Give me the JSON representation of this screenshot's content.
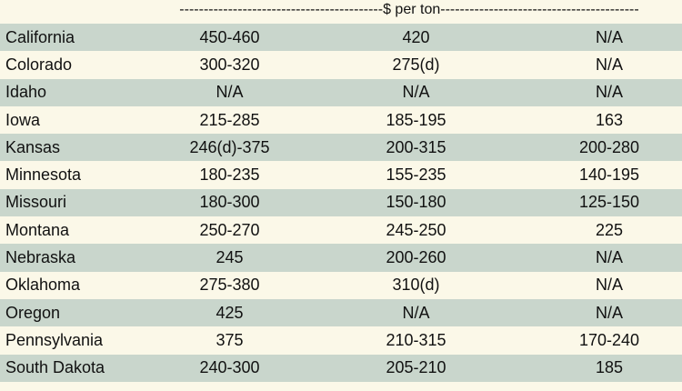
{
  "header": {
    "unit_label": "------------------------------------------$ per ton-----------------------------------------"
  },
  "rows": [
    {
      "state": "California",
      "v1": "450-460",
      "v2": "420",
      "v3": "N/A"
    },
    {
      "state": "Colorado",
      "v1": "300-320",
      "v2": "275(d)",
      "v3": "N/A"
    },
    {
      "state": "Idaho",
      "v1": "N/A",
      "v2": "N/A",
      "v3": "N/A"
    },
    {
      "state": "Iowa",
      "v1": "215-285",
      "v2": "185-195",
      "v3": "163"
    },
    {
      "state": "Kansas",
      "v1": "246(d)-375",
      "v2": "200-315",
      "v3": "200-280"
    },
    {
      "state": "Minnesota",
      "v1": "180-235",
      "v2": "155-235",
      "v3": "140-195"
    },
    {
      "state": "Missouri",
      "v1": "180-300",
      "v2": "150-180",
      "v3": "125-150"
    },
    {
      "state": "Montana",
      "v1": "250-270",
      "v2": "245-250",
      "v3": "225"
    },
    {
      "state": "Nebraska",
      "v1": "245",
      "v2": "200-260",
      "v3": "N/A"
    },
    {
      "state": "Oklahoma",
      "v1": "275-380",
      "v2": "310(d)",
      "v3": "N/A"
    },
    {
      "state": "Oregon",
      "v1": "425",
      "v2": "N/A",
      "v3": "N/A"
    },
    {
      "state": "Pennsylvania",
      "v1": "375",
      "v2": "210-315",
      "v3": "170-240"
    },
    {
      "state": "South Dakota",
      "v1": "240-300",
      "v2": "205-210",
      "v3": "185"
    }
  ]
}
